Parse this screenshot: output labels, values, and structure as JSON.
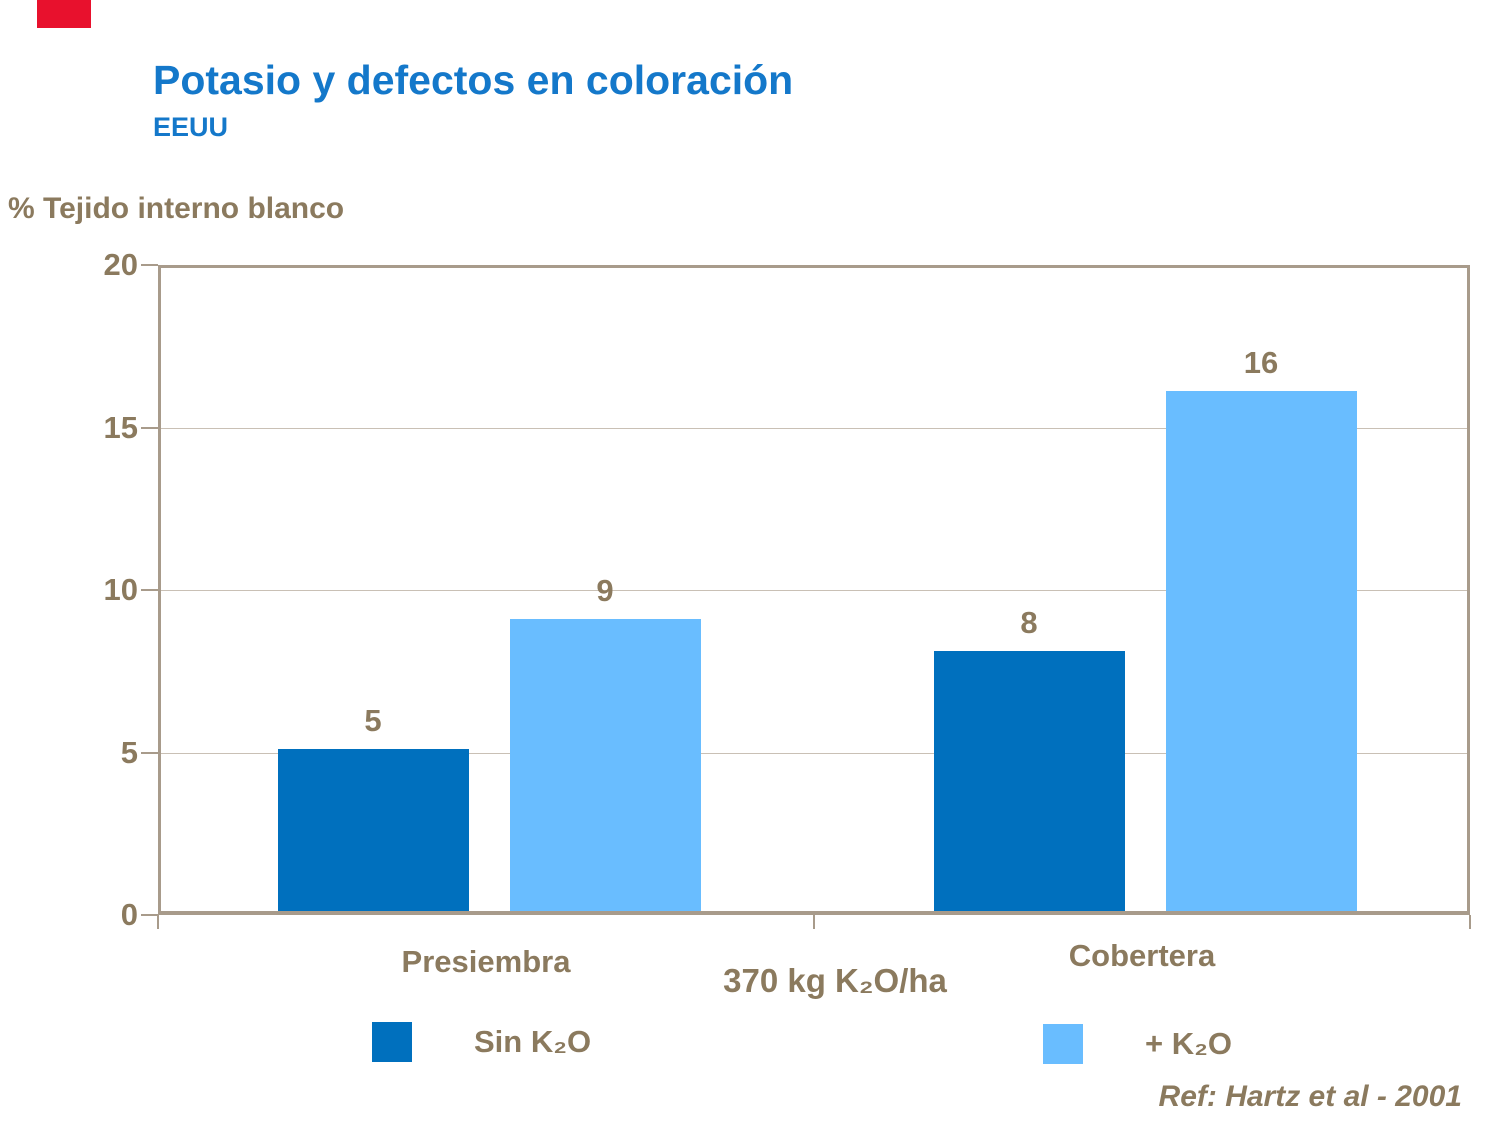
{
  "slide": {
    "title": "Potasio y defectos en coloración",
    "subtitle": "EEUU",
    "reference": "Ref: Hartz et al - 2001"
  },
  "chart_data": {
    "type": "bar",
    "title": "Potasio y defectos en coloración",
    "subtitle": "EEUU",
    "ylabel": "% Tejido interno blanco",
    "xlabel": "",
    "categories": [
      "Presiembra",
      "Cobertera"
    ],
    "center_note": "370 kg K₂O/ha",
    "series": [
      {
        "name": "Sin K₂O",
        "color": "#0070BE",
        "values": [
          5,
          8
        ]
      },
      {
        "name": "+ K₂O",
        "color": "#69BDFF",
        "values": [
          9,
          16
        ]
      }
    ],
    "ylim": [
      0,
      20
    ],
    "yticks": [
      0,
      5,
      10,
      15,
      20
    ],
    "grid": true,
    "legend_position": "bottom"
  },
  "colors": {
    "title_blue": "#1478CA",
    "text_brown": "#8B7A5E",
    "axis_line": "#A89B8B",
    "gridline": "#C9C0B5",
    "accent_red": "#E8112D",
    "series_dark_blue": "#0070BE",
    "series_light_blue": "#69BDFF"
  }
}
